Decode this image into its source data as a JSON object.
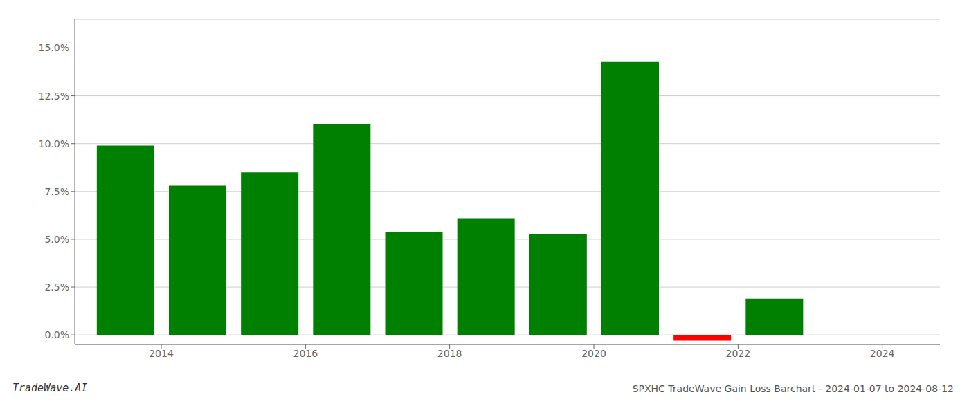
{
  "chart_data": {
    "type": "bar",
    "title": "SPXHC TradeWave Gain Loss Barchart - 2024-01-07 to 2024-08-12",
    "annotations": [
      "TradeWave.AI"
    ],
    "x": [
      2013.5,
      2014.5,
      2015.5,
      2016.5,
      2017.5,
      2018.5,
      2019.5,
      2020.5,
      2021.5,
      2022.5
    ],
    "values": [
      0.099,
      0.078,
      0.085,
      0.11,
      0.054,
      0.061,
      0.0525,
      0.143,
      -0.003,
      0.019
    ],
    "colors": [
      "#008000",
      "#008000",
      "#008000",
      "#008000",
      "#008000",
      "#008000",
      "#008000",
      "#008000",
      "#FF0000",
      "#008000"
    ],
    "xlim": [
      2012.8,
      2024.8
    ],
    "ylim": [
      -0.005,
      0.165
    ],
    "xticks": [
      2014,
      2016,
      2018,
      2020,
      2022,
      2024
    ],
    "yticks": [
      {
        "value": 0.0,
        "label": "0.0%"
      },
      {
        "value": 0.025,
        "label": "2.5%"
      },
      {
        "value": 0.05,
        "label": "5.0%"
      },
      {
        "value": 0.075,
        "label": "7.5%"
      },
      {
        "value": 0.1,
        "label": "10.0%"
      },
      {
        "value": 0.125,
        "label": "12.5%"
      },
      {
        "value": 0.15,
        "label": "15.0%"
      }
    ],
    "grid": true
  }
}
